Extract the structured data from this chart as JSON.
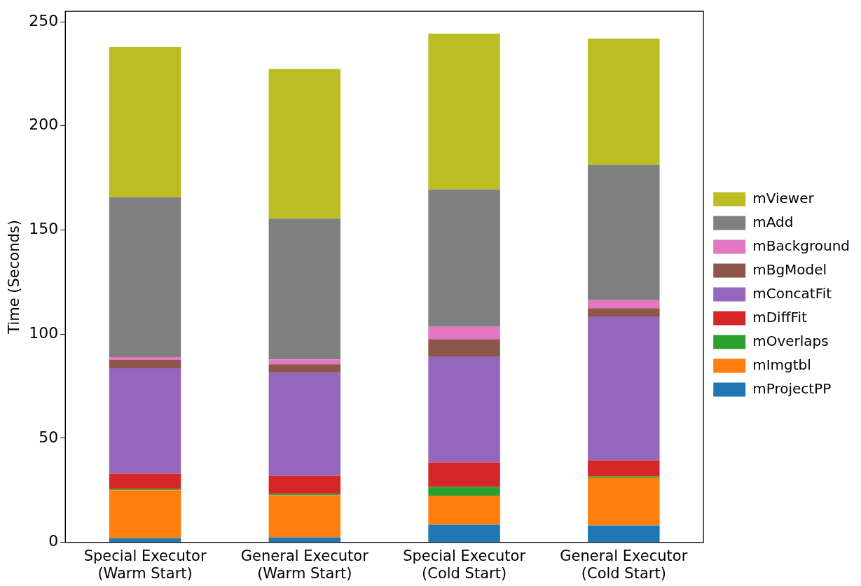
{
  "chart_data": {
    "type": "bar",
    "stacked": true,
    "ylabel": "Time (Seconds)",
    "categories": [
      "Special Executor\n(Warm Start)",
      "General Executor\n(Warm Start)",
      "Special Executor\n(Cold Start)",
      "General Executor\n(Cold Start)"
    ],
    "ylim": [
      0,
      255
    ],
    "yticks": [
      0,
      50,
      100,
      150,
      200,
      250
    ],
    "grid": false,
    "legend": "right",
    "series": [
      {
        "name": "mProjectPP",
        "color": "#1f77b4",
        "values": [
          2.0,
          2.4,
          8.4,
          8.1
        ]
      },
      {
        "name": "mImgtbl",
        "color": "#ff7f0e",
        "values": [
          23.0,
          20.2,
          14.0,
          23.0
        ]
      },
      {
        "name": "mOverlaps",
        "color": "#2ca02c",
        "values": [
          0.6,
          0.6,
          4.2,
          0.6
        ]
      },
      {
        "name": "mDiffFit",
        "color": "#d62728",
        "values": [
          7.4,
          8.8,
          11.8,
          7.7
        ]
      },
      {
        "name": "mConcatFit",
        "color": "#9467bd",
        "values": [
          50.6,
          49.5,
          50.9,
          69.1
        ]
      },
      {
        "name": "mBgModel",
        "color": "#8c564b",
        "values": [
          4.0,
          4.0,
          8.2,
          3.9
        ]
      },
      {
        "name": "mBackground",
        "color": "#e377c2",
        "values": [
          1.4,
          2.3,
          6.0,
          3.9
        ]
      },
      {
        "name": "mAdd",
        "color": "#7f7f7f",
        "values": [
          76.8,
          67.7,
          66.0,
          65.0
        ]
      },
      {
        "name": "mViewer",
        "color": "#bcbd22",
        "values": [
          72.1,
          71.8,
          74.8,
          60.6
        ]
      }
    ]
  }
}
